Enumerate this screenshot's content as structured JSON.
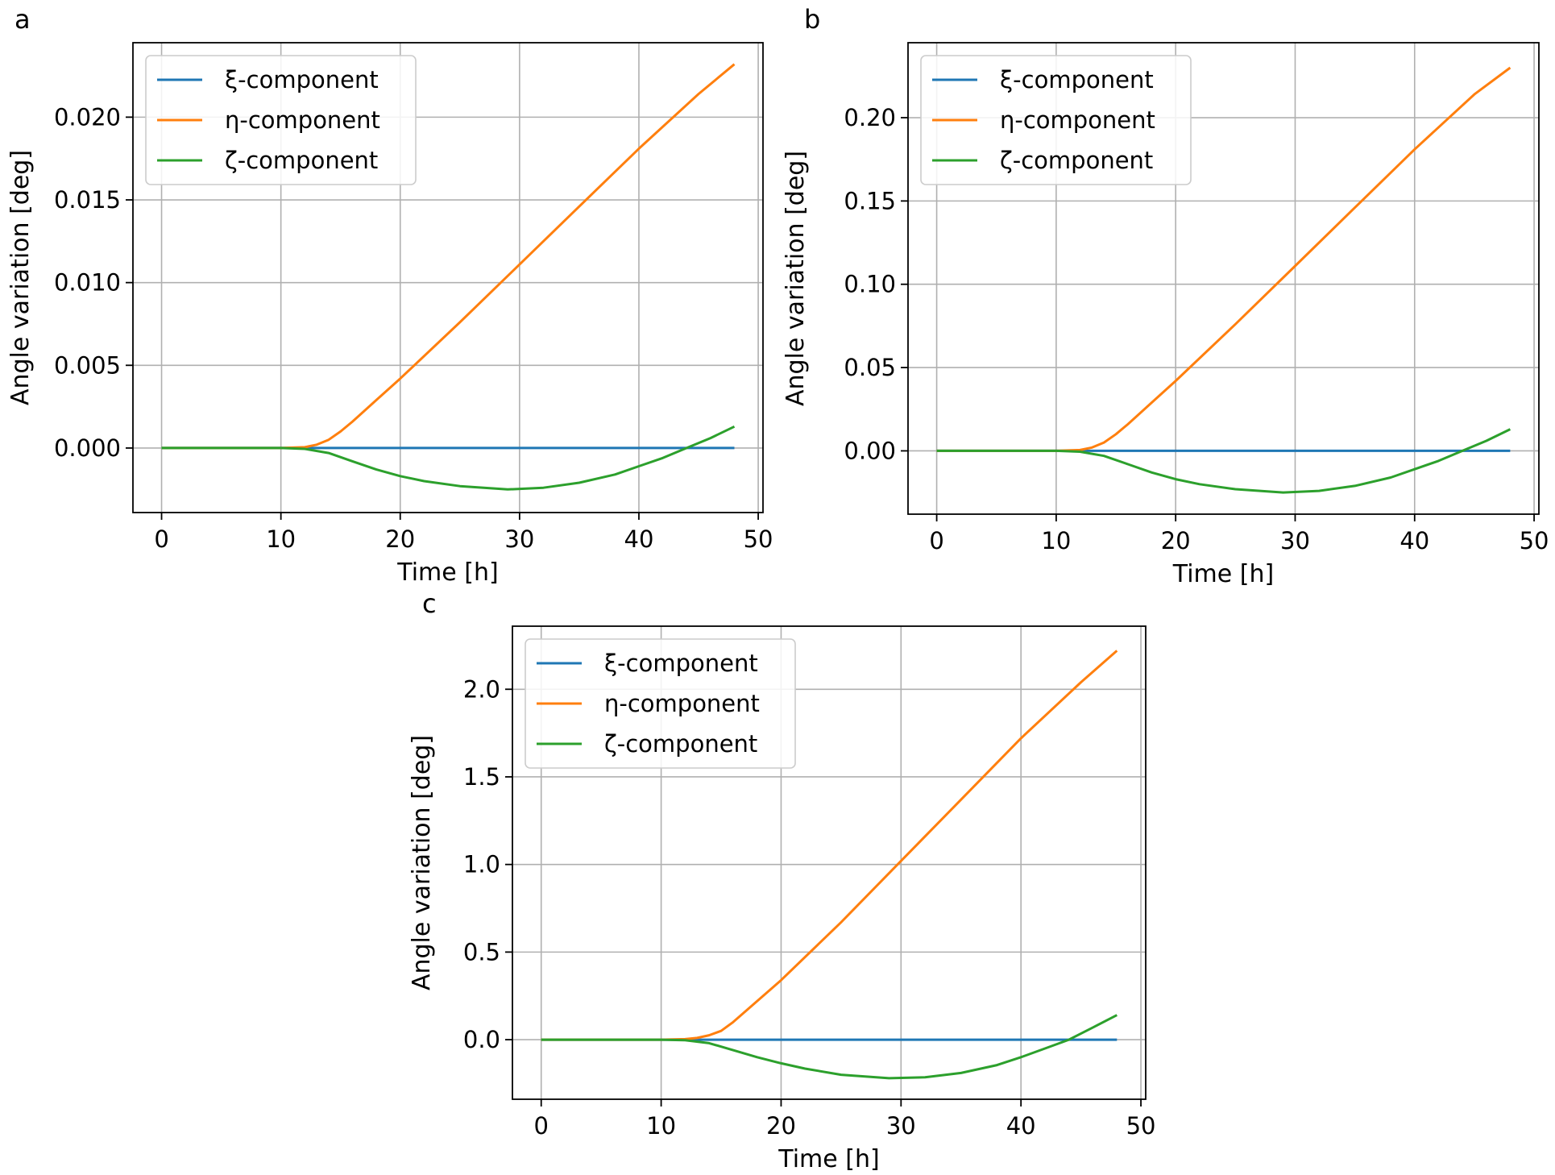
{
  "figure": {
    "panel_letters": [
      "a",
      "b",
      "c"
    ]
  },
  "chart_data": [
    {
      "panel": "a",
      "type": "line",
      "xlabel": "Time [h]",
      "ylabel": "Angle variation [deg]",
      "xlim": [
        -2.4,
        50.4
      ],
      "ylim": [
        -0.0039,
        0.0245
      ],
      "xticks": [
        0,
        10,
        20,
        30,
        40,
        50
      ],
      "xtick_labels": [
        "0",
        "10",
        "20",
        "30",
        "40",
        "50"
      ],
      "yticks": [
        0.0,
        0.005,
        0.01,
        0.015,
        0.02
      ],
      "ytick_labels": [
        "0.000",
        "0.005",
        "0.010",
        "0.015",
        "0.020"
      ],
      "grid": true,
      "legend_position": "top-left",
      "series": [
        {
          "name": "ξ-component",
          "color": "#1f77b4",
          "x": [
            0,
            48
          ],
          "y": [
            0,
            0
          ]
        },
        {
          "name": "η-component",
          "color": "#ff7f0e",
          "x": [
            0,
            10,
            12,
            13,
            14,
            15,
            16,
            18,
            20,
            25,
            30,
            35,
            40,
            45,
            48
          ],
          "y": [
            0,
            0,
            5e-05,
            0.0002,
            0.0005,
            0.001,
            0.0016,
            0.0029,
            0.0042,
            0.0076,
            0.0111,
            0.0146,
            0.0181,
            0.0214,
            0.0232
          ]
        },
        {
          "name": "ζ-component",
          "color": "#2ca02c",
          "x": [
            0,
            10,
            12,
            14,
            16,
            18,
            20,
            22,
            25,
            29,
            32,
            35,
            38,
            40,
            42,
            44,
            46,
            48
          ],
          "y": [
            0,
            0,
            -5e-05,
            -0.0003,
            -0.0008,
            -0.0013,
            -0.0017,
            -0.002,
            -0.0023,
            -0.0025,
            -0.0024,
            -0.0021,
            -0.0016,
            -0.0011,
            -0.0006,
            0,
            0.0006,
            0.0013
          ]
        }
      ]
    },
    {
      "panel": "b",
      "type": "line",
      "xlabel": "Time [h]",
      "ylabel": "Angle variation [deg]",
      "xlim": [
        -2.4,
        50.4
      ],
      "ylim": [
        -0.038,
        0.245
      ],
      "xticks": [
        0,
        10,
        20,
        30,
        40,
        50
      ],
      "xtick_labels": [
        "0",
        "10",
        "20",
        "30",
        "40",
        "50"
      ],
      "yticks": [
        0.0,
        0.05,
        0.1,
        0.15,
        0.2
      ],
      "ytick_labels": [
        "0.00",
        "0.05",
        "0.10",
        "0.15",
        "0.20"
      ],
      "grid": true,
      "legend_position": "top-left",
      "series": [
        {
          "name": "ξ-component",
          "color": "#1f77b4",
          "x": [
            0,
            48
          ],
          "y": [
            0,
            0
          ]
        },
        {
          "name": "η-component",
          "color": "#ff7f0e",
          "x": [
            0,
            10,
            12,
            13,
            14,
            15,
            16,
            18,
            20,
            25,
            30,
            35,
            40,
            45,
            48
          ],
          "y": [
            0,
            0,
            0.0005,
            0.002,
            0.005,
            0.01,
            0.016,
            0.029,
            0.042,
            0.076,
            0.111,
            0.146,
            0.181,
            0.214,
            0.23
          ]
        },
        {
          "name": "ζ-component",
          "color": "#2ca02c",
          "x": [
            0,
            10,
            12,
            14,
            16,
            18,
            20,
            22,
            25,
            29,
            32,
            35,
            38,
            40,
            42,
            44,
            46,
            48
          ],
          "y": [
            0,
            0,
            -0.0005,
            -0.003,
            -0.008,
            -0.013,
            -0.017,
            -0.02,
            -0.023,
            -0.025,
            -0.024,
            -0.021,
            -0.016,
            -0.011,
            -0.006,
            0,
            0.006,
            0.013
          ]
        }
      ]
    },
    {
      "panel": "c",
      "type": "line",
      "xlabel": "Time [h]",
      "ylabel": "Angle variation [deg]",
      "xlim": [
        -2.4,
        50.4
      ],
      "ylim": [
        -0.34,
        2.36
      ],
      "xticks": [
        0,
        10,
        20,
        30,
        40,
        50
      ],
      "xtick_labels": [
        "0",
        "10",
        "20",
        "30",
        "40",
        "50"
      ],
      "yticks": [
        0.0,
        0.5,
        1.0,
        1.5,
        2.0
      ],
      "ytick_labels": [
        "0.0",
        "0.5",
        "1.0",
        "1.5",
        "2.0"
      ],
      "grid": true,
      "legend_position": "top-left",
      "series": [
        {
          "name": "ξ-component",
          "color": "#1f77b4",
          "x": [
            0,
            48
          ],
          "y": [
            0,
            0
          ]
        },
        {
          "name": "η-component",
          "color": "#ff7f0e",
          "x": [
            0,
            10,
            12,
            13,
            14,
            15,
            16,
            18,
            20,
            25,
            30,
            35,
            40,
            45,
            48
          ],
          "y": [
            0,
            0,
            0.003,
            0.01,
            0.025,
            0.05,
            0.1,
            0.22,
            0.34,
            0.67,
            1.02,
            1.37,
            1.72,
            2.04,
            2.22
          ]
        },
        {
          "name": "ζ-component",
          "color": "#2ca02c",
          "x": [
            0,
            10,
            12,
            14,
            16,
            18,
            20,
            22,
            25,
            29,
            32,
            35,
            38,
            40,
            42,
            44,
            46,
            48
          ],
          "y": [
            0,
            0,
            -0.003,
            -0.02,
            -0.06,
            -0.1,
            -0.135,
            -0.165,
            -0.2,
            -0.22,
            -0.215,
            -0.19,
            -0.145,
            -0.1,
            -0.05,
            0,
            0.07,
            0.14
          ]
        }
      ]
    }
  ]
}
